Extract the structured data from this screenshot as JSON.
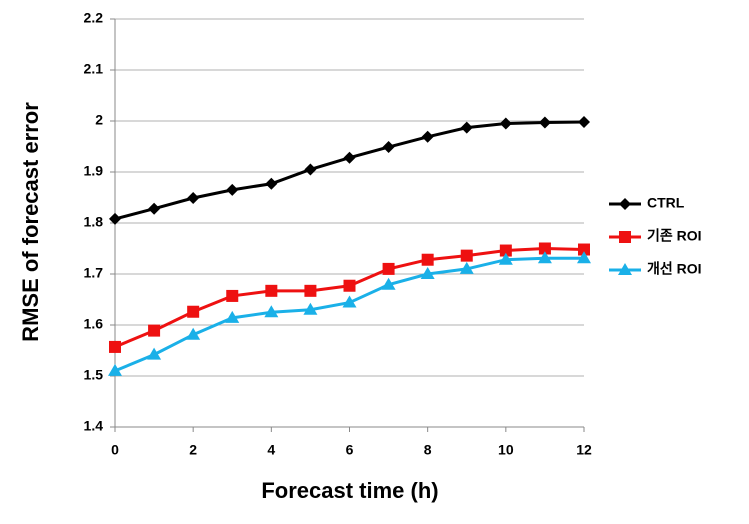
{
  "chart_data": {
    "type": "line",
    "x_label": "Forecast time (h)",
    "y_label": "RMSE of forecast error",
    "x": [
      0,
      1,
      2,
      3,
      4,
      5,
      6,
      7,
      8,
      9,
      10,
      11,
      12
    ],
    "series": [
      {
        "name": "CTRL",
        "color": "#000000",
        "marker": "diamond",
        "values": [
          1.808,
          1.828,
          1.849,
          1.865,
          1.877,
          1.905,
          1.928,
          1.949,
          1.969,
          1.987,
          1.995,
          1.997,
          1.998
        ]
      },
      {
        "name": "기존 ROI",
        "color": "#ee1111",
        "marker": "square",
        "values": [
          1.557,
          1.589,
          1.626,
          1.657,
          1.667,
          1.667,
          1.677,
          1.71,
          1.728,
          1.736,
          1.746,
          1.75,
          1.748
        ]
      },
      {
        "name": "개선 ROI",
        "color": "#1ab0e8",
        "marker": "triangle",
        "values": [
          1.51,
          1.542,
          1.581,
          1.614,
          1.625,
          1.63,
          1.644,
          1.679,
          1.7,
          1.71,
          1.728,
          1.731,
          1.731
        ]
      }
    ],
    "xlim": [
      0,
      12
    ],
    "xticks": [
      0,
      2,
      4,
      6,
      8,
      10,
      12
    ],
    "ylim": [
      1.4,
      2.2
    ],
    "yticks": [
      1.4,
      1.5,
      1.6,
      1.7,
      1.8,
      1.9,
      2,
      2.1,
      2.2
    ],
    "grid": true,
    "legend": "right"
  }
}
